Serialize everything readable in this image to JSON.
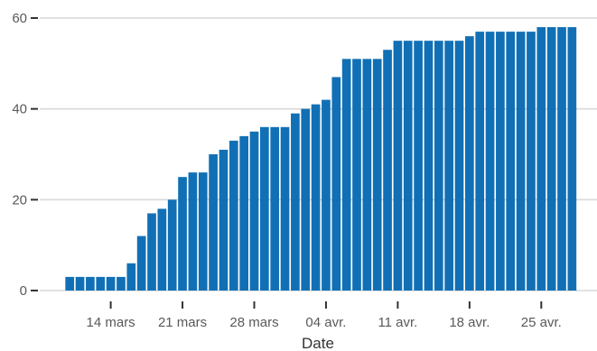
{
  "chart_data": {
    "type": "bar",
    "xlabel": "Date",
    "ylabel": "",
    "ylim": [
      0,
      60
    ],
    "yticks": [
      0,
      20,
      40,
      60
    ],
    "grid": "horizontal",
    "bar_color": "#1170b5",
    "x_start": "2020-03-10",
    "x_ticks": [
      {
        "date": "2020-03-14",
        "label": "14 mars"
      },
      {
        "date": "2020-03-21",
        "label": "21 mars"
      },
      {
        "date": "2020-03-28",
        "label": "28 mars"
      },
      {
        "date": "2020-04-04",
        "label": "04 avr."
      },
      {
        "date": "2020-04-11",
        "label": "11 avr."
      },
      {
        "date": "2020-04-18",
        "label": "18 avr."
      },
      {
        "date": "2020-04-25",
        "label": "25 avr."
      }
    ],
    "values": [
      3,
      3,
      3,
      3,
      3,
      3,
      6,
      12,
      17,
      18,
      20,
      25,
      26,
      26,
      30,
      31,
      33,
      34,
      35,
      36,
      36,
      36,
      39,
      40,
      41,
      42,
      47,
      51,
      51,
      51,
      51,
      53,
      55,
      55,
      55,
      55,
      55,
      55,
      55,
      56,
      57,
      57,
      57,
      57,
      57,
      57,
      58,
      58,
      58,
      58
    ]
  }
}
